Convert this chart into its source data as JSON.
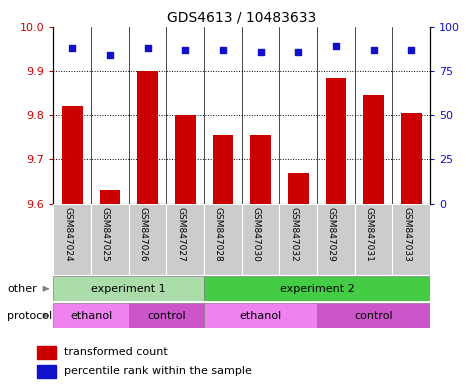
{
  "title": "GDS4613 / 10483633",
  "samples": [
    "GSM847024",
    "GSM847025",
    "GSM847026",
    "GSM847027",
    "GSM847028",
    "GSM847030",
    "GSM847032",
    "GSM847029",
    "GSM847031",
    "GSM847033"
  ],
  "bar_values": [
    9.82,
    9.63,
    9.9,
    9.8,
    9.755,
    9.755,
    9.67,
    9.885,
    9.845,
    9.805
  ],
  "percentile_values": [
    88,
    84,
    88,
    87,
    87,
    86,
    86,
    89,
    87,
    87
  ],
  "ylim_left": [
    9.6,
    10.0
  ],
  "ylim_right": [
    0,
    100
  ],
  "yticks_left": [
    9.6,
    9.7,
    9.8,
    9.9,
    10.0
  ],
  "yticks_right": [
    0,
    25,
    50,
    75,
    100
  ],
  "bar_color": "#cc0000",
  "dot_color": "#1111cc",
  "bar_width": 0.55,
  "dot_size": 22,
  "exp1_color": "#aaddaa",
  "exp2_color": "#44cc44",
  "eth_color": "#ee82ee",
  "ctrl_color": "#cc55cc",
  "legend_items": [
    {
      "label": "transformed count",
      "color": "#cc0000"
    },
    {
      "label": "percentile rank within the sample",
      "color": "#1111cc"
    }
  ],
  "tick_label_color_left": "#cc0000",
  "tick_label_color_right": "#1111cc",
  "xtick_bg": "#cccccc"
}
